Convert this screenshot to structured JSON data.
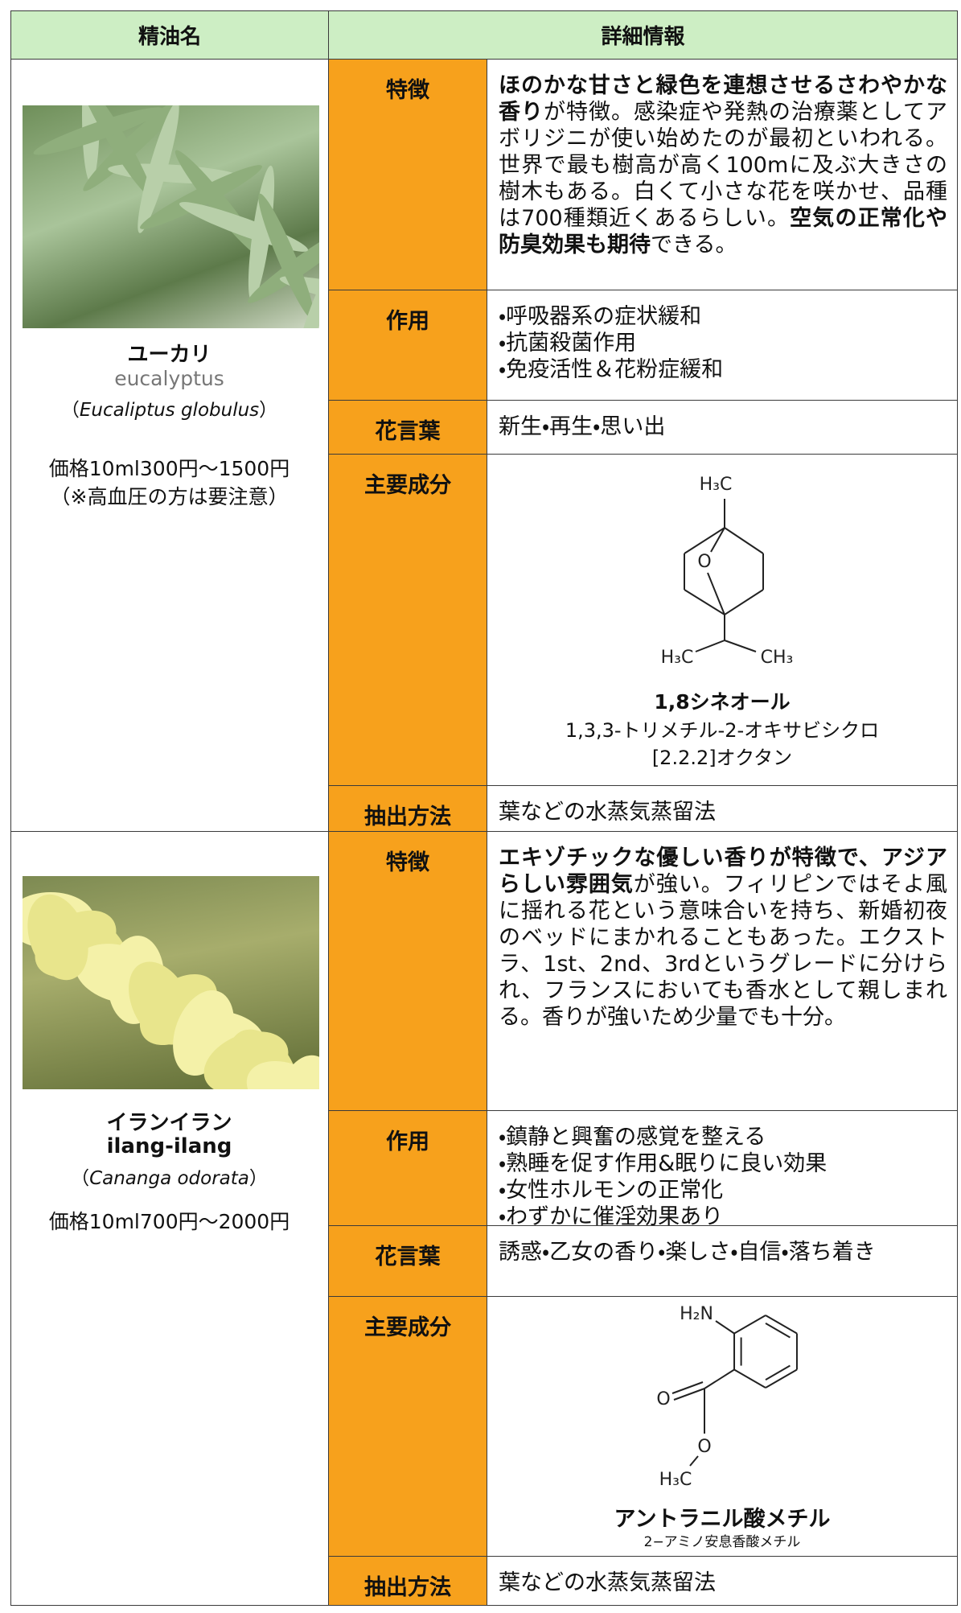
{
  "header": {
    "name": "精油名",
    "details": "詳細情報"
  },
  "oils": [
    {
      "name": "ユーカリ",
      "english": "eucalyptus",
      "english_bold": false,
      "scientific": {
        "open": "（",
        "name": "Eucaliptus globulus",
        "close": "）"
      },
      "price": "価格10ml300円〜1500円",
      "note": "（※高血圧の方は要注意）",
      "details": [
        {
          "label": "特徴",
          "text": [
            {
              "t": "ほのかな甘さと緑色を連想させるさわやかな香り",
              "bold": true
            },
            {
              "t": "が特徴。感染症や発熱の治療薬としてアボリジニが使い始めたのが最初といわれる。世界で最も樹高が高く100mに及ぶ大きさの樹木もある。白くて小さな花を咲かせ、品種は700種類近くあるらしい。",
              "bold": false
            },
            {
              "t": "空気の正常化や防臭効果も期待",
              "bold": true
            },
            {
              "t": "できる。",
              "bold": false
            }
          ]
        },
        {
          "label": "作用",
          "items": [
            "・呼吸器系の症状緩和",
            "・抗菌殺菌作用",
            "・免疫活性＆花粉症緩和"
          ]
        },
        {
          "label": "花言葉",
          "text": [
            {
              "t": "新生・再生・思い出",
              "bold": false
            }
          ]
        },
        {
          "label": "主要成分",
          "structure": {
            "atoms": [
              "H₃C",
              "O",
              "H₃C",
              "CH₃"
            ]
          },
          "compound": "1,8シネオール",
          "compound_desc": [
            "1,3,3-トリメチル-2-オキサビシクロ",
            "[2.2.2]オクタン"
          ]
        },
        {
          "label": "抽出方法",
          "text": [
            {
              "t": "葉などの水蒸気蒸留法",
              "bold": false
            }
          ]
        }
      ]
    },
    {
      "name": "イランイラン",
      "english": "ilang-ilang",
      "english_bold": true,
      "scientific": {
        "open": "（",
        "name": "Cananga odorata",
        "close": "）"
      },
      "price": "価格10ml700円〜2000円",
      "details": [
        {
          "label": "特徴",
          "text": [
            {
              "t": "エキゾチックな優しい香りが特徴で、アジアらしい雰囲気",
              "bold": true
            },
            {
              "t": "が強い。フィリピンではそよ風に揺れる花という意味合いを持ち、新婚初夜のベッドにまかれることもあった。エクストラ、1st、2nd、3rdというグレードに分けられ、フランスにおいても香水として親しまれる。香りが強いため少量でも十分。",
              "bold": false
            }
          ]
        },
        {
          "label": "作用",
          "items": [
            "・鎮静と興奮の感覚を整える",
            "・熟睡を促す作用&眠りに良い効果",
            "・女性ホルモンの正常化",
            "・わずかに催淫効果あり"
          ]
        },
        {
          "label": "花言葉",
          "text": [
            {
              "t": "誘惑・乙女の香り・楽しさ・自信・落ち着き",
              "bold": false
            }
          ]
        },
        {
          "label": "主要成分",
          "structure": {
            "atoms": [
              "H₂N",
              "O",
              "O",
              "H₃C"
            ]
          },
          "compound": "アントラニル酸メチル",
          "compound_desc": [
            "2−アミノ安息香酸メチル"
          ]
        },
        {
          "label": "抽出方法",
          "text": [
            {
              "t": "葉などの水蒸気蒸留法",
              "bold": false
            }
          ]
        }
      ]
    }
  ]
}
